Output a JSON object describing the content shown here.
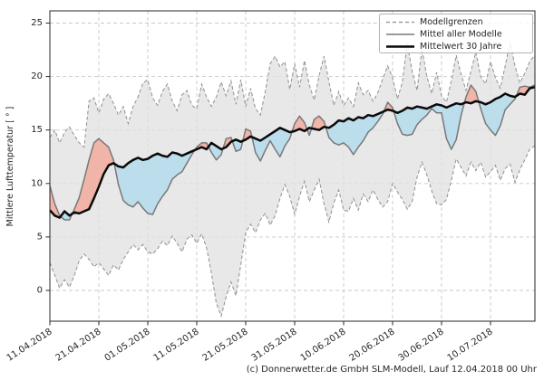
{
  "chart_data": {
    "type": "line",
    "title": "",
    "ylabel": "Mittlere Lufttemperatur [ ° ]",
    "footer": "(c) Donnerwetter.de GmbH SLM-Modell, Lauf 12.04.2018 00 Uhr",
    "grid": true,
    "x_tick_labels": [
      "11.04.2018",
      "21.04.2018",
      "01.05.2018",
      "11.05.2018",
      "21.05.2018",
      "31.05.2018",
      "10.06.2018",
      "20.06.2018",
      "30.06.2018",
      "10.07.2018"
    ],
    "x_tick_day_indices": [
      0,
      10,
      20,
      30,
      40,
      50,
      60,
      70,
      80,
      90
    ],
    "y_tick_labels": [
      "0",
      "5",
      "10",
      "15",
      "20",
      "25"
    ],
    "y_ticks": [
      0,
      5,
      10,
      15,
      20,
      25
    ],
    "ylim": [
      -2.9,
      26.1
    ],
    "days_total": 100,
    "legend": {
      "position": "top-right",
      "entries": [
        {
          "label": "Modellgrenzen",
          "style": "dashed",
          "color": "#909090"
        },
        {
          "label": "Mittel aller Modelle",
          "style": "solid",
          "color": "#787878"
        },
        {
          "label": "Mittelwert 30 Jahre",
          "style": "solid-thick",
          "color": "#0a0a0a"
        }
      ]
    },
    "colors": {
      "band_fill": "#e2e2e2",
      "band_edge": "#909090",
      "above_fill": "#f1b1a4",
      "below_fill": "#b9dcec",
      "model_mean_line": "#787878",
      "mean30_line": "#0a0a0a",
      "grid": "#c9c9c9",
      "frame": "#262626",
      "text": "#262626"
    },
    "series": [
      {
        "name": "Modellgrenzen oben",
        "values": [
          14.3,
          15.0,
          13.8,
          14.8,
          15.3,
          14.5,
          13.8,
          13.4,
          17.7,
          18.0,
          16.6,
          17.9,
          18.4,
          17.5,
          16.4,
          17.2,
          15.6,
          17.2,
          18.1,
          19.4,
          19.7,
          18.0,
          17.3,
          18.6,
          19.3,
          17.7,
          16.8,
          18.3,
          18.7,
          17.3,
          17.0,
          19.3,
          18.1,
          17.2,
          18.1,
          19.5,
          18.2,
          19.6,
          17.4,
          19.7,
          17.2,
          18.9,
          17.0,
          16.4,
          18.6,
          21.2,
          21.9,
          20.9,
          21.4,
          18.8,
          21.2,
          19.0,
          21.5,
          19.2,
          17.8,
          20.1,
          21.9,
          19.5,
          17.3,
          18.6,
          17.3,
          18.0,
          17.2,
          19.4,
          18.3,
          18.7,
          17.7,
          18.5,
          19.8,
          21.0,
          19.9,
          17.9,
          19.5,
          23.1,
          20.5,
          18.7,
          22.6,
          20.0,
          18.4,
          20.4,
          18.2,
          17.6,
          19.6,
          22.0,
          20.2,
          18.7,
          20.5,
          22.3,
          20.0,
          19.3,
          21.4,
          19.9,
          18.9,
          21.0,
          23.2,
          21.0,
          19.4,
          20.3,
          21.4,
          22.0
        ]
      },
      {
        "name": "Modellgrenzen unten",
        "values": [
          2.6,
          1.4,
          0.2,
          1.0,
          0.3,
          1.4,
          2.8,
          3.4,
          2.9,
          2.2,
          2.6,
          2.0,
          1.4,
          2.4,
          1.9,
          2.9,
          3.6,
          4.3,
          3.8,
          4.3,
          3.6,
          3.4,
          3.9,
          4.6,
          4.2,
          5.1,
          4.4,
          3.6,
          4.8,
          5.2,
          4.4,
          5.3,
          4.0,
          1.6,
          -1.2,
          -2.4,
          -0.6,
          0.8,
          -0.5,
          2.4,
          5.4,
          6.2,
          5.4,
          6.6,
          7.2,
          6.1,
          7.0,
          8.6,
          9.9,
          8.8,
          7.1,
          8.8,
          10.2,
          8.3,
          9.4,
          10.4,
          8.1,
          6.4,
          8.2,
          9.4,
          7.5,
          7.4,
          8.6,
          7.5,
          9.0,
          8.3,
          9.4,
          8.5,
          7.8,
          8.3,
          10.0,
          9.2,
          8.5,
          7.6,
          8.3,
          10.6,
          12.0,
          10.8,
          9.3,
          8.1,
          8.0,
          8.5,
          10.3,
          12.3,
          11.5,
          10.7,
          12.0,
          11.2,
          12.0,
          10.6,
          11.1,
          11.7,
          10.3,
          11.4,
          11.8,
          10.1,
          11.3,
          12.2,
          13.2,
          13.5
        ]
      },
      {
        "name": "Mittel aller Modelle",
        "values": [
          9.8,
          8.1,
          7.0,
          6.6,
          6.6,
          7.6,
          8.7,
          10.4,
          12.2,
          13.8,
          14.2,
          13.8,
          13.4,
          12.2,
          9.9,
          8.4,
          8.0,
          7.8,
          8.3,
          7.7,
          7.2,
          7.1,
          8.1,
          8.8,
          9.4,
          10.4,
          10.8,
          11.1,
          11.9,
          12.7,
          13.4,
          13.8,
          13.8,
          12.9,
          12.2,
          12.7,
          14.2,
          14.3,
          13.0,
          13.2,
          15.1,
          14.9,
          12.9,
          12.1,
          13.1,
          14.0,
          13.2,
          12.5,
          13.5,
          14.2,
          15.6,
          16.3,
          15.7,
          14.5,
          16.0,
          16.3,
          15.8,
          14.3,
          13.8,
          13.6,
          13.8,
          13.4,
          12.7,
          13.4,
          14.0,
          14.8,
          15.2,
          15.8,
          16.5,
          17.6,
          17.1,
          15.6,
          14.6,
          14.5,
          14.6,
          15.5,
          16.0,
          16.4,
          17.0,
          16.6,
          16.6,
          14.2,
          13.2,
          14.1,
          16.4,
          18.1,
          19.2,
          18.6,
          17.0,
          15.6,
          15.0,
          14.5,
          15.4,
          16.9,
          17.4,
          17.9,
          19.0,
          19.1,
          19.0,
          19.2
        ]
      },
      {
        "name": "Mittelwert 30 Jahre",
        "values": [
          7.5,
          7.0,
          6.8,
          7.4,
          7.0,
          7.3,
          7.2,
          7.4,
          7.6,
          8.6,
          9.7,
          10.9,
          11.7,
          11.9,
          11.6,
          11.5,
          11.9,
          12.2,
          12.4,
          12.2,
          12.3,
          12.6,
          12.8,
          12.6,
          12.5,
          12.9,
          12.8,
          12.6,
          12.8,
          13.0,
          13.2,
          13.4,
          13.2,
          13.8,
          13.5,
          13.2,
          13.4,
          13.9,
          14.1,
          13.9,
          14.1,
          14.4,
          14.2,
          14.0,
          14.3,
          14.6,
          14.9,
          15.2,
          15.0,
          14.8,
          14.9,
          15.1,
          14.9,
          15.2,
          15.1,
          15.0,
          15.3,
          15.2,
          15.5,
          15.9,
          15.8,
          16.1,
          15.9,
          16.2,
          16.1,
          16.4,
          16.3,
          16.5,
          16.7,
          16.9,
          16.8,
          16.6,
          16.8,
          17.1,
          17.0,
          17.2,
          17.1,
          17.0,
          17.2,
          17.4,
          17.3,
          17.1,
          17.3,
          17.5,
          17.4,
          17.6,
          17.5,
          17.7,
          17.6,
          17.4,
          17.6,
          17.9,
          18.1,
          18.4,
          18.2,
          18.1,
          18.4,
          18.3,
          18.9,
          19.0
        ]
      }
    ]
  }
}
